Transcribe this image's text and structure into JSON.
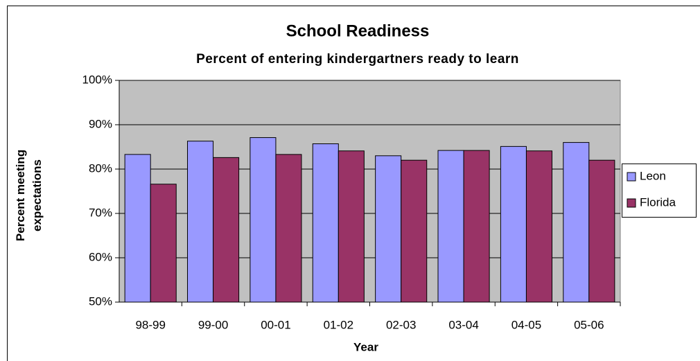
{
  "chart_data": {
    "type": "bar",
    "title": "School Readiness",
    "subtitle": "Percent of entering kindergartners ready to learn",
    "x_label": "Year",
    "y_label": "Percent  meeting expectations",
    "categories": [
      "98-99",
      "99-00",
      "00-01",
      "01-02",
      "02-03",
      "03-04",
      "04-05",
      "05-06"
    ],
    "series": [
      {
        "name": "Leon",
        "color": "#9999ff",
        "values": [
          83.3,
          86.3,
          87.1,
          85.7,
          83.0,
          84.2,
          85.1,
          86.0
        ]
      },
      {
        "name": "Florida",
        "color": "#993366",
        "values": [
          76.6,
          82.6,
          83.3,
          84.1,
          82.0,
          84.2,
          84.1,
          82.0
        ]
      }
    ],
    "ylim": [
      50,
      100
    ],
    "yticks": [
      {
        "value": 50,
        "label": "50%"
      },
      {
        "value": 60,
        "label": "60%"
      },
      {
        "value": 70,
        "label": "70%"
      },
      {
        "value": 80,
        "label": "80%"
      },
      {
        "value": 90,
        "label": "90%"
      },
      {
        "value": 100,
        "label": "100%"
      }
    ],
    "grid": true,
    "legend": "right"
  }
}
